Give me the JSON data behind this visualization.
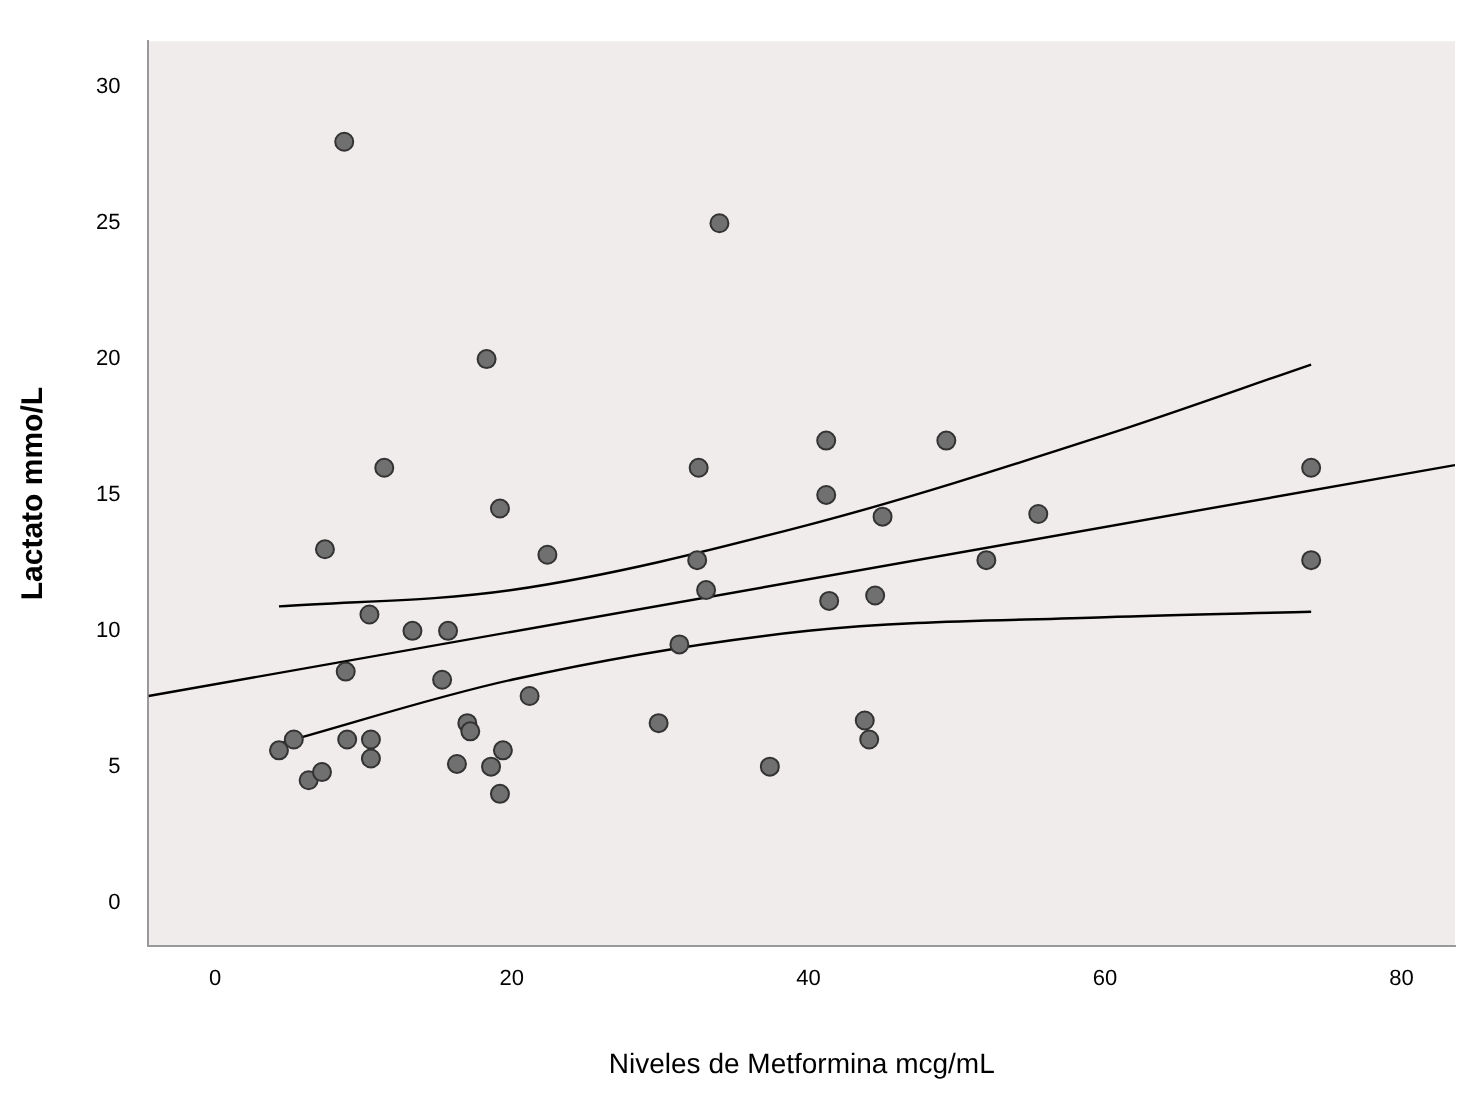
{
  "chart_data": {
    "type": "scatter",
    "xlabel": "Niveles de Metformina mcg/mL",
    "ylabel": "Lactato mmo/L",
    "xlim": [
      -4.5,
      83.6
    ],
    "ylim": [
      -1.6,
      31.7
    ],
    "xticks": [
      0,
      20,
      40,
      60,
      80
    ],
    "yticks": [
      0,
      5,
      10,
      15,
      20,
      25,
      30
    ],
    "grid": false,
    "legend": false,
    "marker": "circle",
    "series": [
      {
        "type": "scatter",
        "color": "#707070",
        "x": [
          4.3,
          5.3,
          6.3,
          7.2,
          7.4,
          8.8,
          8.9,
          8.7,
          10.4,
          10.5,
          10.5,
          11.4,
          13.3,
          15.3,
          15.7,
          16.3,
          17.0,
          17.2,
          18.3,
          18.6,
          19.2,
          19.2,
          19.4,
          21.2,
          22.4,
          29.9,
          31.3,
          32.5,
          32.6,
          33.1,
          34.0,
          37.4,
          41.2,
          41.2,
          41.4,
          43.8,
          44.1,
          44.5,
          45.0,
          49.3,
          52.0,
          55.5,
          73.9,
          73.9
        ],
        "values": [
          5.6,
          6.0,
          4.5,
          4.8,
          13.0,
          8.5,
          6.0,
          28.0,
          10.6,
          6.0,
          5.3,
          16.0,
          10.0,
          8.2,
          10.0,
          5.1,
          6.6,
          6.3,
          20.0,
          5.0,
          14.5,
          4.0,
          5.6,
          7.6,
          12.8,
          6.6,
          9.5,
          12.6,
          16.0,
          11.5,
          25.0,
          5.0,
          15.0,
          17.0,
          11.1,
          6.7,
          6.0,
          11.3,
          14.2,
          17.0,
          12.6,
          14.3,
          16.0,
          12.6
        ]
      },
      {
        "type": "line",
        "color": "#000000",
        "marker": "none",
        "x": [
          -4.5,
          83.6
        ],
        "values": [
          7.6,
          16.1
        ]
      },
      {
        "type": "line",
        "color": "#000000",
        "marker": "none",
        "x": [
          4.3,
          20,
          40,
          60,
          73.9
        ],
        "values": [
          10.9,
          11.5,
          13.9,
          17.2,
          19.8
        ]
      },
      {
        "type": "line",
        "color": "#000000",
        "marker": "none",
        "x": [
          4.3,
          20,
          40,
          60,
          73.9
        ],
        "values": [
          5.85,
          8.2,
          10.0,
          10.5,
          10.7
        ]
      }
    ]
  }
}
